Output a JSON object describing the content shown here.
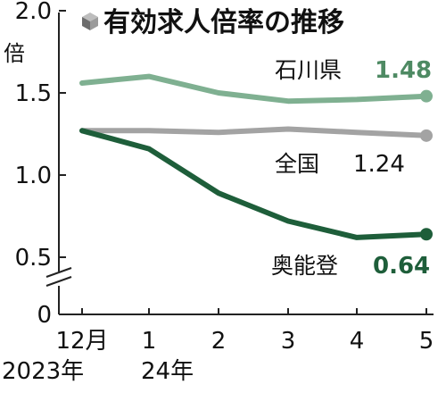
{
  "chart_data": {
    "type": "line",
    "title": "有効求人倍率の推移",
    "ylabel": "倍",
    "ylim": [
      0,
      2.0
    ],
    "y_ticks": [
      "0",
      "0.5",
      "1.0",
      "1.5",
      "2.0"
    ],
    "axis_break": true,
    "x_categories": [
      "12月",
      "1",
      "2",
      "3",
      "4",
      "5"
    ],
    "x_years": [
      "2023年",
      "24年"
    ],
    "grid": false,
    "series": [
      {
        "name": "石川県",
        "value_label": "1.48",
        "color": "#7fb091",
        "values": [
          1.56,
          1.6,
          1.5,
          1.45,
          1.46,
          1.48
        ]
      },
      {
        "name": "全国",
        "value_label": "1.24",
        "color": "#a3a3a3",
        "values": [
          1.27,
          1.27,
          1.26,
          1.28,
          1.26,
          1.24
        ]
      },
      {
        "name": "奥能登",
        "value_label": "0.64",
        "color": "#1e5e3a",
        "values": [
          1.27,
          1.16,
          0.89,
          0.72,
          0.62,
          0.64
        ]
      }
    ]
  }
}
